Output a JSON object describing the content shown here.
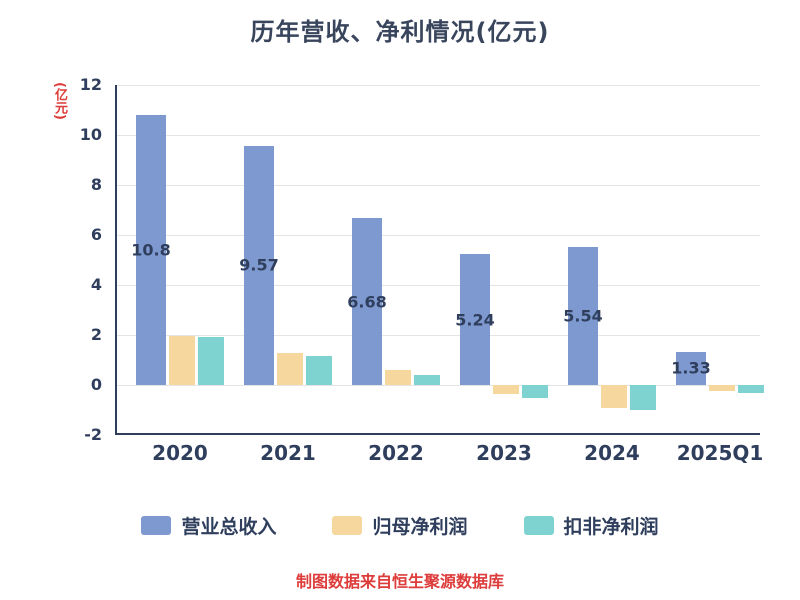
{
  "title": "历年营收、净利情况(亿元)",
  "y_axis_label": "(亿元)",
  "footer": "制图数据来自恒生聚源数据库",
  "colors": {
    "revenue": "#7e99cf",
    "net_profit": "#f6d79e",
    "non_gaap": "#7ed3d0",
    "text": "#2e3e5c",
    "red": "#dd3c3a",
    "grid": "#e4e4e4"
  },
  "legend": [
    {
      "label": "营业总收入",
      "color_key": "revenue"
    },
    {
      "label": "归母净利润",
      "color_key": "net_profit"
    },
    {
      "label": "扣非净利润",
      "color_key": "non_gaap"
    }
  ],
  "chart_data": {
    "type": "bar",
    "title": "历年营收、净利情况(亿元)",
    "ylabel": "(亿元)",
    "categories": [
      "2020",
      "2021",
      "2022",
      "2023",
      "2024",
      "2025Q1"
    ],
    "series": [
      {
        "name": "营业总收入",
        "key": "revenue",
        "values": [
          10.8,
          9.57,
          6.68,
          5.24,
          5.54,
          1.33
        ],
        "labels": [
          "10.8",
          "9.57",
          "6.68",
          "5.24",
          "5.54",
          "1.33"
        ]
      },
      {
        "name": "归母净利润",
        "key": "net_profit",
        "values": [
          1.96,
          1.28,
          0.62,
          -0.35,
          -0.9,
          -0.25
        ]
      },
      {
        "name": "扣非净利润",
        "key": "non_gaap",
        "values": [
          1.92,
          1.15,
          0.4,
          -0.5,
          -1.0,
          -0.3
        ]
      }
    ],
    "yticks": [
      12,
      10,
      8,
      6,
      4,
      2,
      0,
      -2
    ],
    "ylim": [
      -2,
      12
    ],
    "grid": true,
    "legend_position": "bottom"
  }
}
